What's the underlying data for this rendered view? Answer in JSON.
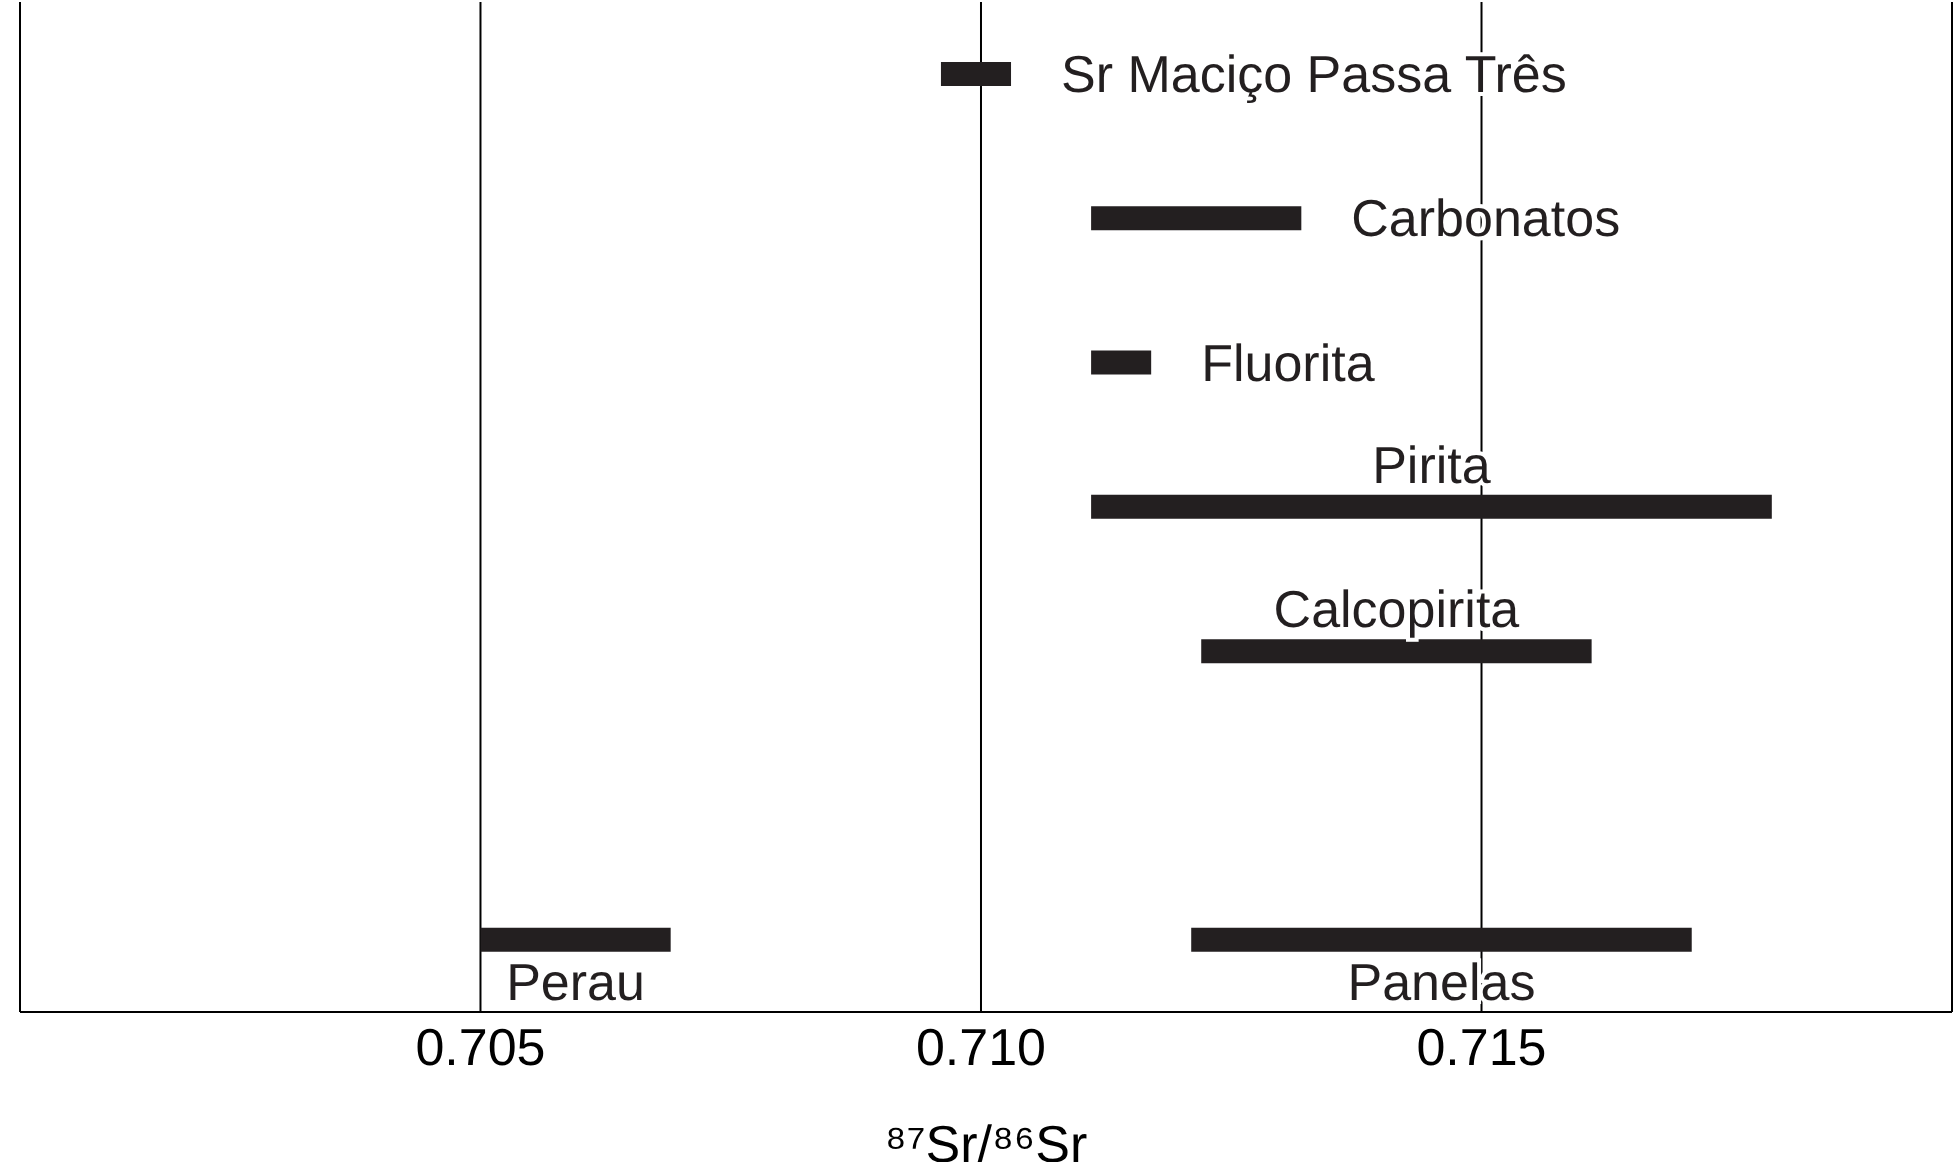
{
  "chart_data": {
    "type": "bar",
    "orientation": "horizontal",
    "xlabel": "⁸⁷Sr/⁸⁶Sr",
    "categories": [
      null,
      null,
      null,
      null,
      null,
      null,
      null
    ],
    "series": [
      {
        "name": "Sr Maciço Passa Três",
        "color": "#231f20",
        "base": [
          0.7096,
          null,
          null,
          null,
          null,
          null,
          null
        ],
        "values": [
          0.0007,
          null,
          null,
          null,
          null,
          null,
          null
        ]
      },
      {
        "name": "Carbonatos",
        "color": "#231f20",
        "base": [
          null,
          0.7111,
          null,
          null,
          null,
          null,
          null
        ],
        "values": [
          null,
          0.0021,
          null,
          null,
          null,
          null,
          null
        ]
      },
      {
        "name": "Fluorita",
        "color": "#231f20",
        "base": [
          null,
          null,
          0.7111,
          null,
          null,
          null,
          null
        ],
        "values": [
          null,
          null,
          0.0006,
          null,
          null,
          null,
          null
        ]
      },
      {
        "name": "Pirita",
        "color": "#231f20",
        "base": [
          null,
          null,
          null,
          0.7111,
          null,
          null,
          null
        ],
        "values": [
          null,
          null,
          null,
          0.0068,
          null,
          null,
          null
        ]
      },
      {
        "name": "Calcopirita",
        "color": "#231f20",
        "base": [
          null,
          null,
          null,
          null,
          0.7122,
          null,
          null
        ],
        "values": [
          null,
          null,
          null,
          null,
          0.0039,
          null,
          null
        ]
      },
      {
        "name": "Perau",
        "color": "#231f20",
        "base": [
          null,
          null,
          null,
          null,
          null,
          null,
          0.705
        ],
        "values": [
          null,
          null,
          null,
          null,
          null,
          null,
          0.0019
        ]
      },
      {
        "name": "Panelas",
        "color": "#231f20",
        "base": [
          null,
          null,
          null,
          null,
          null,
          null,
          0.7121
        ],
        "values": [
          null,
          null,
          null,
          null,
          null,
          null,
          0.005
        ]
      }
    ],
    "xlim": [
      0.7004,
      0.7197
    ],
    "xticks": [
      {
        "value": 0.705,
        "label": "0.705"
      },
      {
        "value": 0.71,
        "label": "0.710"
      },
      {
        "value": 0.715,
        "label": "0.715"
      }
    ],
    "grid": "x",
    "legend": false,
    "tick_labels": "x"
  }
}
